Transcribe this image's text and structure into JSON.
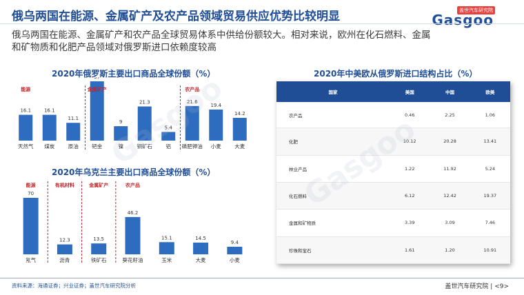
{
  "page": {
    "title": "俄乌两国在能源、金属矿产及农产品领域贸易供应优势比较明显",
    "description": "俄乌两国在能源、金属矿产和农产品全球贸易体系中供给份额较大。相对来说，欧州在化石燃料、金属和矿物质和化肥产品领域对俄罗斯进口依赖度较高",
    "logo_top": "盖世汽车研究院",
    "logo_main": "Gasgoo",
    "watermark": "Gasgoo"
  },
  "chart_data": [
    {
      "type": "bar",
      "title": "2020年俄罗斯主要出口商品全球份额（%）",
      "categories": [
        "天然气",
        "煤炭",
        "原油",
        "钯金",
        "镍",
        "铜矿石",
        "铝",
        "磷肥钾油",
        "小麦",
        "大麦"
      ],
      "values": [
        16.1,
        16.1,
        11.1,
        37,
        9,
        21.3,
        5.4,
        21.6,
        19.4,
        14.2
      ],
      "value_labels": [
        "16.1",
        "16.1",
        "11.1",
        "37",
        "9",
        "21.3",
        "5.4",
        "21.6",
        "19.4",
        "14.2"
      ],
      "groups": [
        {
          "label": "能源",
          "start": 0
        },
        {
          "label": "金属矿产",
          "start": 3
        },
        {
          "label": "农产品",
          "start": 7
        }
      ],
      "ylim": [
        0,
        37
      ],
      "bar_color": "#2e6cc0",
      "group_label_color": "#c0262b"
    },
    {
      "type": "bar",
      "title": "2020年乌克兰主要出口商品全球份额（%）",
      "categories": [
        "氖气",
        "沥青",
        "铁矿石",
        "葵花籽油",
        "玉米",
        "大麦",
        "小麦"
      ],
      "values": [
        70,
        12.3,
        13.5,
        46.2,
        15.1,
        14.5,
        9.4
      ],
      "value_labels": [
        "70",
        "12.3",
        "13.5",
        "46.2",
        "15.1",
        "14.5",
        "9.4"
      ],
      "groups": [
        {
          "label": "能源",
          "start": 0
        },
        {
          "label": "有机材料",
          "start": 1
        },
        {
          "label": "金属矿产",
          "start": 2
        },
        {
          "label": "农产品",
          "start": 3
        }
      ],
      "ylim": [
        0,
        70
      ],
      "bar_color": "#2e6cc0",
      "group_label_color": "#c0262b"
    },
    {
      "type": "table",
      "title": "2020年中美欧从俄罗斯进口结构占比（%）",
      "columns": [
        "国家",
        "美国",
        "中国",
        "欧美"
      ],
      "rows": [
        [
          "农产品",
          "0.46",
          "2.25",
          "1.06"
        ],
        [
          "化肥",
          "10.12",
          "20.28",
          "13.41"
        ],
        [
          "林业产品",
          "1.22",
          "11.92",
          "5.24"
        ],
        [
          "化石燃料",
          "6.12",
          "12.42",
          "19.37"
        ],
        [
          "金属和矿物质",
          "3.39",
          "3.09",
          "7.46"
        ],
        [
          "珍珠和宝石",
          "1.61",
          "1.20",
          "10.91"
        ]
      ]
    }
  ],
  "footer": {
    "source": "资料来源：海通证券；兴业证券；盖世汽车研究院分析",
    "brand": "盖世汽车研究院",
    "page": "<9>"
  }
}
